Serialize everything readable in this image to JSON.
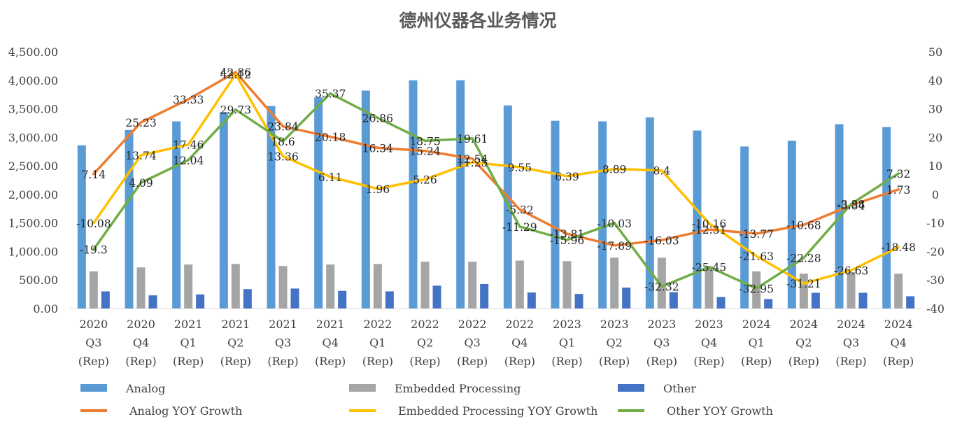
{
  "colors": {
    "analog": "#5b9bd5",
    "embedded": "#a5a5a5",
    "other": "#4472c4",
    "analog_growth": "#ed7d31",
    "embedded_growth": "#ffc000",
    "other_growth": "#70ad47",
    "axis": "#d9d9d9",
    "text": "#404040"
  },
  "chart_data": {
    "type": "bar",
    "title": "德州仪器各业务情况",
    "categories": [
      [
        "2020",
        "Q3",
        "(Rep)"
      ],
      [
        "2020",
        "Q4",
        "(Rep)"
      ],
      [
        "2021",
        "Q1",
        "(Rep)"
      ],
      [
        "2021",
        "Q2",
        "(Rep)"
      ],
      [
        "2021",
        "Q3",
        "(Rep)"
      ],
      [
        "2021",
        "Q4",
        "(Rep)"
      ],
      [
        "2022",
        "Q1",
        "(Rep)"
      ],
      [
        "2022",
        "Q2",
        "(Rep)"
      ],
      [
        "2022",
        "Q3",
        "(Rep)"
      ],
      [
        "2022",
        "Q4",
        "(Rep)"
      ],
      [
        "2023",
        "Q1",
        "(Rep)"
      ],
      [
        "2023",
        "Q2",
        "(Rep)"
      ],
      [
        "2023",
        "Q3",
        "(Rep)"
      ],
      [
        "2023",
        "Q4",
        "(Rep)"
      ],
      [
        "2024",
        "Q1",
        "(Rep)"
      ],
      [
        "2024",
        "Q2",
        "(Rep)"
      ],
      [
        "2024",
        "Q3",
        "(Rep)"
      ],
      [
        "2024",
        "Q4",
        "(Rep)"
      ]
    ],
    "y_left": {
      "min": 0,
      "max": 4500,
      "step": 500,
      "ticks": [
        "0.00",
        "500.00",
        "1,000.00",
        "1,500.00",
        "2,000.00",
        "2,500.00",
        "3,000.00",
        "3,500.00",
        "4,000.00",
        "4,500.00"
      ]
    },
    "y_right": {
      "min": -40,
      "max": 50,
      "step": 10,
      "ticks": [
        "-40",
        "-30",
        "-20",
        "-10",
        "0",
        "10",
        "20",
        "30",
        "40",
        "50"
      ]
    },
    "bar_series": [
      {
        "name": "Analog",
        "color_key": "analog",
        "values": [
          2860,
          3130,
          3280,
          3440,
          3550,
          3700,
          3820,
          4000,
          4000,
          3560,
          3290,
          3280,
          3350,
          3120,
          2840,
          2940,
          3230,
          3180
        ]
      },
      {
        "name": "Embedded Processing",
        "color_key": "embedded",
        "values": [
          650,
          720,
          770,
          780,
          745,
          770,
          780,
          820,
          820,
          840,
          830,
          890,
          890,
          740,
          650,
          610,
          640,
          610
        ]
      },
      {
        "name": "Other",
        "color_key": "other",
        "values": [
          300,
          230,
          245,
          340,
          350,
          310,
          300,
          400,
          430,
          280,
          255,
          365,
          285,
          200,
          165,
          275,
          275,
          215
        ]
      }
    ],
    "line_series": [
      {
        "name": "Analog YOY Growth",
        "color_key": "analog_growth",
        "values": [
          7.14,
          25.23,
          33.33,
          42.86,
          23.84,
          20.18,
          16.34,
          15.24,
          12.54,
          -5.32,
          -13.81,
          -17.89,
          -16.03,
          -12.31,
          -13.77,
          -10.68,
          -3.84,
          1.73
        ],
        "labels": [
          "7.14",
          "25.23",
          "33.33",
          "42.86",
          "23.84",
          "20.18",
          "16.34",
          "15.24",
          "12.54",
          "-5.32",
          "-13.81",
          "-17.89",
          "-16.03",
          "-12.31",
          "-13.77",
          "-10.68",
          "-3.84",
          "1.73"
        ]
      },
      {
        "name": "Embedded Processing YOY Growth",
        "color_key": "embedded_growth",
        "values": [
          -10.08,
          13.74,
          17.46,
          42.12,
          13.36,
          6.11,
          1.96,
          5.26,
          11.25,
          9.55,
          6.39,
          8.89,
          8.4,
          -10.16,
          -21.63,
          -31.21,
          -26.63,
          -18.48
        ],
        "labels": [
          "-10.08",
          "13.74",
          "17.46",
          "42.12",
          "13.36",
          "6.11",
          "1.96",
          "5.26",
          "11.25",
          "9.55",
          "6.39",
          "8.89",
          "8.4",
          "-10.16",
          "-21.63",
          "-31.21",
          "-26.63",
          "-18.48"
        ]
      },
      {
        "name": "Other  YOY Growth",
        "color_key": "other_growth",
        "values": [
          -19.3,
          4.09,
          12.04,
          29.73,
          18.6,
          35.37,
          26.86,
          18.75,
          19.61,
          -11.29,
          -15.96,
          -10.03,
          -32.32,
          -25.45,
          -32.95,
          -22.28,
          -3.38,
          7.32
        ],
        "labels": [
          "-19.3",
          "4.09",
          "12.04",
          "29.73",
          "18.6",
          "35.37",
          "26.86",
          "18.75",
          "19.61",
          "-11.29",
          "-15.96",
          "-10.03",
          "-32.32",
          "-25.45",
          "-32.95",
          "-22.28",
          "-3.38",
          "7.32"
        ]
      }
    ],
    "legend": [
      {
        "label": "Analog",
        "kind": "bar",
        "color_key": "analog"
      },
      {
        "label": "Embedded Processing",
        "kind": "bar",
        "color_key": "embedded"
      },
      {
        "label": "Other",
        "kind": "bar",
        "color_key": "other"
      },
      {
        "label": "Analog YOY Growth",
        "kind": "line",
        "color_key": "analog_growth"
      },
      {
        "label": "Embedded Processing YOY Growth",
        "kind": "line",
        "color_key": "embedded_growth"
      },
      {
        "label": "Other  YOY Growth",
        "kind": "line",
        "color_key": "other_growth"
      }
    ],
    "legend_position": "bottom",
    "grid": false
  }
}
